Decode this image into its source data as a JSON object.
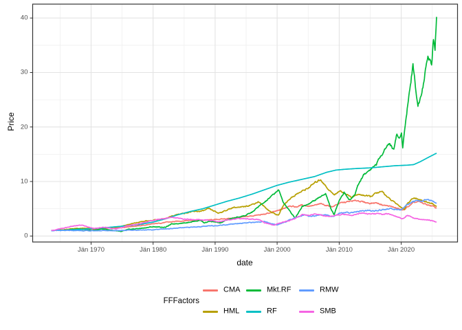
{
  "figure": {
    "y_axis_title": "Price",
    "x_axis_title": "date",
    "y_tick_labels": [
      "0",
      "10",
      "20",
      "30",
      "40"
    ],
    "x_tick_labels": [
      "Jän 1970",
      "Jän 1980",
      "Jän 1990",
      "Jän 2000",
      "Jän 2010",
      "Jän 2020"
    ]
  },
  "legend": {
    "title": "FFFactors",
    "entries": [
      {
        "label": "CMA",
        "color": "#F8766D"
      },
      {
        "label": "HML",
        "color": "#B79F00"
      },
      {
        "label": "Mkt.RF",
        "color": "#00BA38"
      },
      {
        "label": "RF",
        "color": "#00BFC4"
      },
      {
        "label": "RMW",
        "color": "#619CFF"
      },
      {
        "label": "SMB",
        "color": "#F564E3"
      }
    ]
  },
  "colors": {
    "panel_border": "#333333",
    "grid_major": "#e3e3e3",
    "grid_minor": "#efefef",
    "tick_mark": "#333333",
    "tick_text": "#4d4d4d"
  },
  "chart_data": {
    "type": "line",
    "title": "",
    "xlabel": "date",
    "ylabel": "Price",
    "legend_title": "FFFactors",
    "legend_position": "bottom",
    "grid": true,
    "x_unit": "decimal year",
    "xlim": [
      1960.58,
      2029.08
    ],
    "ylim": [
      -1.1,
      42.55
    ],
    "x_tick_years": [
      1970,
      1980,
      1990,
      2000,
      2010,
      2020
    ],
    "x_minor_tick_step": 5,
    "y_tick_values": [
      0,
      10,
      20,
      30,
      40
    ],
    "y_minor_tick_values": [
      5,
      15,
      25,
      35
    ],
    "series": [
      {
        "name": "CMA",
        "color": "#F8766D",
        "points": [
          [
            1963.6,
            1.0
          ],
          [
            1965,
            1.05
          ],
          [
            1967,
            1.15
          ],
          [
            1969,
            1.2
          ],
          [
            1971,
            1.3
          ],
          [
            1973,
            1.45
          ],
          [
            1974.5,
            1.5
          ],
          [
            1976,
            1.7
          ],
          [
            1978,
            1.9
          ],
          [
            1980,
            2.2
          ],
          [
            1982,
            2.5
          ],
          [
            1984,
            2.7
          ],
          [
            1986,
            2.9
          ],
          [
            1988,
            2.9
          ],
          [
            1990,
            3.0
          ],
          [
            1992,
            3.2
          ],
          [
            1994,
            3.4
          ],
          [
            1996,
            3.7
          ],
          [
            1998,
            4.0
          ],
          [
            2000,
            4.6
          ],
          [
            2001,
            5.0
          ],
          [
            2002,
            5.6
          ],
          [
            2003,
            5.3
          ],
          [
            2004,
            5.7
          ],
          [
            2005,
            5.5
          ],
          [
            2006,
            5.6
          ],
          [
            2007,
            5.9
          ],
          [
            2008,
            5.6
          ],
          [
            2009,
            5.4
          ],
          [
            2010,
            6.0
          ],
          [
            2011,
            6.2
          ],
          [
            2012,
            6.4
          ],
          [
            2013,
            6.5
          ],
          [
            2014,
            6.2
          ],
          [
            2015,
            6.0
          ],
          [
            2016,
            6.1
          ],
          [
            2017,
            5.7
          ],
          [
            2018,
            5.5
          ],
          [
            2019,
            5.2
          ],
          [
            2020.3,
            4.7
          ],
          [
            2021,
            5.3
          ],
          [
            2022,
            6.1
          ],
          [
            2022.8,
            6.3
          ],
          [
            2023.5,
            6.0
          ],
          [
            2024,
            5.8
          ],
          [
            2025,
            5.5
          ],
          [
            2025.7,
            5.1
          ]
        ]
      },
      {
        "name": "HML",
        "color": "#B79F00",
        "points": [
          [
            1963.6,
            1.0
          ],
          [
            1965,
            1.1
          ],
          [
            1967,
            1.35
          ],
          [
            1969,
            1.4
          ],
          [
            1970.5,
            1.35
          ],
          [
            1972,
            1.5
          ],
          [
            1974,
            1.6
          ],
          [
            1976,
            2.1
          ],
          [
            1978,
            2.6
          ],
          [
            1980,
            2.9
          ],
          [
            1982,
            3.2
          ],
          [
            1984,
            4.0
          ],
          [
            1986,
            4.4
          ],
          [
            1988,
            4.6
          ],
          [
            1989,
            5.0
          ],
          [
            1990.5,
            4.2
          ],
          [
            1992,
            4.8
          ],
          [
            1993,
            5.3
          ],
          [
            1994,
            5.2
          ],
          [
            1995,
            5.5
          ],
          [
            1996,
            5.8
          ],
          [
            1997,
            6.3
          ],
          [
            1998,
            5.3
          ],
          [
            1999,
            4.4
          ],
          [
            2000.2,
            3.8
          ],
          [
            2001,
            5.6
          ],
          [
            2002,
            6.8
          ],
          [
            2003,
            7.6
          ],
          [
            2004,
            8.2
          ],
          [
            2005,
            8.8
          ],
          [
            2006,
            9.7
          ],
          [
            2007,
            10.4
          ],
          [
            2008,
            8.9
          ],
          [
            2009.2,
            7.5
          ],
          [
            2010,
            8.3
          ],
          [
            2011,
            7.8
          ],
          [
            2012,
            7.1
          ],
          [
            2013,
            7.6
          ],
          [
            2014,
            7.5
          ],
          [
            2015,
            7.2
          ],
          [
            2016,
            7.9
          ],
          [
            2017,
            8.1
          ],
          [
            2018,
            6.9
          ],
          [
            2019,
            6.1
          ],
          [
            2020.5,
            4.9
          ],
          [
            2021,
            6.0
          ],
          [
            2022,
            7.1
          ],
          [
            2023,
            6.6
          ],
          [
            2024,
            6.3
          ],
          [
            2025,
            5.9
          ],
          [
            2025.7,
            5.4
          ]
        ]
      },
      {
        "name": "Mkt.RF",
        "color": "#00BA38",
        "points": [
          [
            1963.6,
            1.0
          ],
          [
            1965,
            1.1
          ],
          [
            1966,
            1.05
          ],
          [
            1967,
            1.25
          ],
          [
            1968,
            1.3
          ],
          [
            1970,
            1.0
          ],
          [
            1971,
            1.15
          ],
          [
            1972,
            1.3
          ],
          [
            1974.8,
            0.8
          ],
          [
            1976,
            1.2
          ],
          [
            1978,
            1.4
          ],
          [
            1980,
            1.7
          ],
          [
            1982,
            1.6
          ],
          [
            1983,
            2.2
          ],
          [
            1985,
            2.4
          ],
          [
            1987.7,
            2.9
          ],
          [
            1988.2,
            2.4
          ],
          [
            1989,
            2.7
          ],
          [
            1990.8,
            2.4
          ],
          [
            1992,
            3.0
          ],
          [
            1993,
            3.3
          ],
          [
            1995,
            3.8
          ],
          [
            1996,
            4.4
          ],
          [
            1997,
            5.4
          ],
          [
            1998,
            6.2
          ],
          [
            1999,
            7.2
          ],
          [
            2000.2,
            8.5
          ],
          [
            2001,
            6.2
          ],
          [
            2002,
            4.6
          ],
          [
            2002.9,
            3.3
          ],
          [
            2004,
            5.4
          ],
          [
            2005,
            5.9
          ],
          [
            2006,
            6.5
          ],
          [
            2007.8,
            7.8
          ],
          [
            2008.8,
            4.6
          ],
          [
            2009.2,
            3.9
          ],
          [
            2010,
            6.6
          ],
          [
            2010.8,
            8.0
          ],
          [
            2011.7,
            6.6
          ],
          [
            2012.5,
            7.5
          ],
          [
            2013,
            9.3
          ],
          [
            2014,
            11.3
          ],
          [
            2015,
            12.2
          ],
          [
            2016,
            13.2
          ],
          [
            2017,
            15.3
          ],
          [
            2018,
            17.0
          ],
          [
            2018.8,
            15.9
          ],
          [
            2019.3,
            18.7
          ],
          [
            2019.7,
            17.8
          ],
          [
            2020.05,
            19.3
          ],
          [
            2020.25,
            16.3
          ],
          [
            2020.8,
            22.0
          ],
          [
            2021.9,
            31.4
          ],
          [
            2022.7,
            23.7
          ],
          [
            2023.5,
            27.5
          ],
          [
            2024.3,
            33.1
          ],
          [
            2024.9,
            31.6
          ],
          [
            2025.2,
            36.2
          ],
          [
            2025.45,
            34.6
          ],
          [
            2025.7,
            40.2
          ]
        ]
      },
      {
        "name": "RF",
        "color": "#00BFC4",
        "points": [
          [
            1963.6,
            1.0
          ],
          [
            1966,
            1.1
          ],
          [
            1968,
            1.2
          ],
          [
            1970,
            1.35
          ],
          [
            1972,
            1.5
          ],
          [
            1974,
            1.7
          ],
          [
            1976,
            1.9
          ],
          [
            1978,
            2.15
          ],
          [
            1980,
            2.55
          ],
          [
            1982,
            3.15
          ],
          [
            1984,
            3.9
          ],
          [
            1986,
            4.5
          ],
          [
            1988,
            5.0
          ],
          [
            1990,
            5.7
          ],
          [
            1992,
            6.4
          ],
          [
            1994,
            7.0
          ],
          [
            1996,
            7.7
          ],
          [
            1998,
            8.5
          ],
          [
            2000,
            9.3
          ],
          [
            2002,
            9.9
          ],
          [
            2004,
            10.4
          ],
          [
            2006,
            10.9
          ],
          [
            2008,
            11.7
          ],
          [
            2009.5,
            12.1
          ],
          [
            2011,
            12.25
          ],
          [
            2013,
            12.4
          ],
          [
            2015,
            12.5
          ],
          [
            2017,
            12.7
          ],
          [
            2019,
            12.9
          ],
          [
            2021,
            13.0
          ],
          [
            2022,
            13.1
          ],
          [
            2023,
            13.6
          ],
          [
            2024,
            14.2
          ],
          [
            2025,
            14.8
          ],
          [
            2025.7,
            15.2
          ]
        ]
      },
      {
        "name": "RMW",
        "color": "#619CFF",
        "points": [
          [
            1963.6,
            1.0
          ],
          [
            1966,
            1.0
          ],
          [
            1968,
            1.0
          ],
          [
            1970,
            0.95
          ],
          [
            1972,
            1.0
          ],
          [
            1974,
            1.0
          ],
          [
            1976,
            1.05
          ],
          [
            1978,
            1.1
          ],
          [
            1980,
            1.15
          ],
          [
            1982,
            1.3
          ],
          [
            1984,
            1.45
          ],
          [
            1986,
            1.6
          ],
          [
            1988,
            1.75
          ],
          [
            1990,
            1.9
          ],
          [
            1992,
            2.1
          ],
          [
            1994,
            2.35
          ],
          [
            1996,
            2.5
          ],
          [
            1998,
            2.6
          ],
          [
            2000,
            2.0
          ],
          [
            2001,
            2.5
          ],
          [
            2002,
            2.9
          ],
          [
            2003,
            3.4
          ],
          [
            2004.5,
            3.9
          ],
          [
            2005.5,
            3.6
          ],
          [
            2007,
            3.9
          ],
          [
            2008,
            3.8
          ],
          [
            2009,
            3.6
          ],
          [
            2010,
            4.1
          ],
          [
            2011,
            4.3
          ],
          [
            2012,
            4.3
          ],
          [
            2013,
            4.5
          ],
          [
            2014,
            4.6
          ],
          [
            2015,
            4.7
          ],
          [
            2016,
            4.6
          ],
          [
            2017,
            4.8
          ],
          [
            2018,
            5.0
          ],
          [
            2019,
            4.9
          ],
          [
            2020,
            4.8
          ],
          [
            2021,
            5.8
          ],
          [
            2022,
            6.4
          ],
          [
            2023,
            6.3
          ],
          [
            2024,
            6.7
          ],
          [
            2025,
            6.4
          ],
          [
            2025.7,
            6.1
          ]
        ]
      },
      {
        "name": "SMB",
        "color": "#F564E3",
        "points": [
          [
            1963.6,
            1.0
          ],
          [
            1965,
            1.3
          ],
          [
            1967,
            1.8
          ],
          [
            1968.5,
            2.0
          ],
          [
            1970,
            1.5
          ],
          [
            1971,
            1.4
          ],
          [
            1972,
            1.6
          ],
          [
            1974,
            1.3
          ],
          [
            1976,
            1.9
          ],
          [
            1978,
            2.3
          ],
          [
            1980,
            2.9
          ],
          [
            1981,
            3.1
          ],
          [
            1983,
            3.4
          ],
          [
            1985,
            3.1
          ],
          [
            1987,
            3.0
          ],
          [
            1989,
            2.9
          ],
          [
            1990.5,
            2.6
          ],
          [
            1992,
            3.0
          ],
          [
            1994,
            3.2
          ],
          [
            1996,
            3.1
          ],
          [
            1997,
            3.0
          ],
          [
            1998,
            2.4
          ],
          [
            1999.5,
            2.0
          ],
          [
            2001,
            2.6
          ],
          [
            2002,
            2.8
          ],
          [
            2003,
            3.3
          ],
          [
            2004,
            3.9
          ],
          [
            2005,
            3.8
          ],
          [
            2006,
            4.0
          ],
          [
            2007,
            3.9
          ],
          [
            2008,
            3.6
          ],
          [
            2009,
            3.7
          ],
          [
            2010,
            3.9
          ],
          [
            2011,
            4.0
          ],
          [
            2012,
            3.8
          ],
          [
            2013,
            4.1
          ],
          [
            2014,
            4.2
          ],
          [
            2015,
            4.0
          ],
          [
            2016,
            4.1
          ],
          [
            2017,
            4.0
          ],
          [
            2018,
            4.1
          ],
          [
            2019,
            3.6
          ],
          [
            2020.3,
            3.2
          ],
          [
            2021,
            3.8
          ],
          [
            2022,
            3.3
          ],
          [
            2023,
            3.1
          ],
          [
            2024,
            3.0
          ],
          [
            2025,
            2.8
          ],
          [
            2025.7,
            2.6
          ]
        ]
      }
    ]
  }
}
